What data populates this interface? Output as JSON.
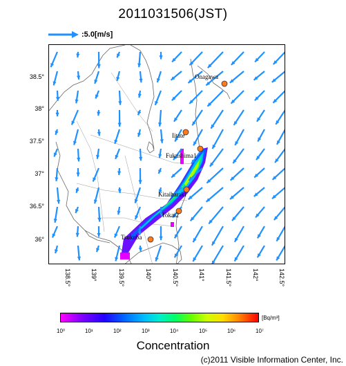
{
  "title": "2011031506(JST)",
  "scale_label": ":5.0[m/s]",
  "latitudes": [
    "38.5°",
    "38°",
    "37.5°",
    "37°",
    "36.5°",
    "36°"
  ],
  "longitudes": [
    "138.5°",
    "139°",
    "139.5°",
    "140°",
    "140.5°",
    "141°",
    "141.5°",
    "142°",
    "142.5°"
  ],
  "cities": [
    {
      "name": "Onagawa",
      "dot": true
    },
    {
      "name": "Iitate",
      "dot": true
    },
    {
      "name": "Fukushima1",
      "dot": true
    },
    {
      "name": "Kitaibaraki",
      "dot": true
    },
    {
      "name": "Tokai2",
      "dot": true
    },
    {
      "name": "Tsukuba",
      "dot": true
    }
  ],
  "colorbar": {
    "ticks": [
      "10⁰",
      "10¹",
      "10²",
      "10³",
      "10⁴",
      "10⁵",
      "10⁶",
      "10⁷"
    ],
    "unit": "[Bq/m³]",
    "label": "Concentration"
  },
  "colors": {
    "arrow": "#1e90ff",
    "city_dot": "#ff7a1a",
    "coast": "#666666"
  },
  "copyright": "(c)2011 Visible Information Center, Inc."
}
